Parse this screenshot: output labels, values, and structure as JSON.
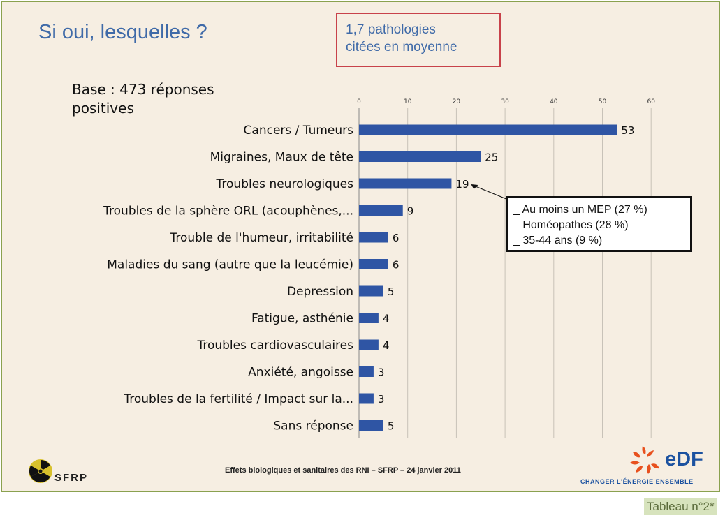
{
  "title": "Si oui, lesquelles ?",
  "avg_box": {
    "line1": "1,7 pathologies",
    "line2": "citées en moyenne"
  },
  "base": {
    "line1": "Base : 473 réponses",
    "line2": "positives"
  },
  "legend_box": {
    "line1": "_ Au moins un MEP (27 %)",
    "line2": "_ Homéopathes (28 %)",
    "line3": "_ 35-44 ans (9 %)"
  },
  "footer": "Effets biologiques et sanitaires des RNI – SFRP – 24 janvier 2011",
  "sfrp_logo_text": "SFRP",
  "edf_logo": {
    "name": "eDF",
    "tagline": "CHANGER L'ÉNERGIE ENSEMBLE"
  },
  "caption": "Tableau n°2*",
  "colors": {
    "bar": "#2f55a4",
    "title": "#3f6aa8",
    "box_border": "#c8424a",
    "slide_border": "#8aa14f"
  },
  "chart_data": {
    "type": "bar",
    "orientation": "horizontal",
    "categories": [
      "Cancers / Tumeurs",
      "Migraines, Maux de tête",
      "Troubles neurologiques",
      "Troubles de la sphère ORL (acouphènes,...",
      "Trouble de l'humeur, irritabilité",
      "Maladies du sang (autre que la leucémie)",
      "Depression",
      "Fatigue, asthénie",
      "Troubles cardiovasculaires",
      "Anxiété, angoisse",
      "Troubles de la fertilité / Impact sur la...",
      "Sans réponse"
    ],
    "values": [
      53,
      25,
      19,
      9,
      6,
      6,
      5,
      4,
      4,
      3,
      3,
      5
    ],
    "ticks": [
      0,
      10,
      20,
      30,
      40,
      50,
      60
    ],
    "xlim": [
      0,
      60
    ],
    "grid": "vertical"
  }
}
